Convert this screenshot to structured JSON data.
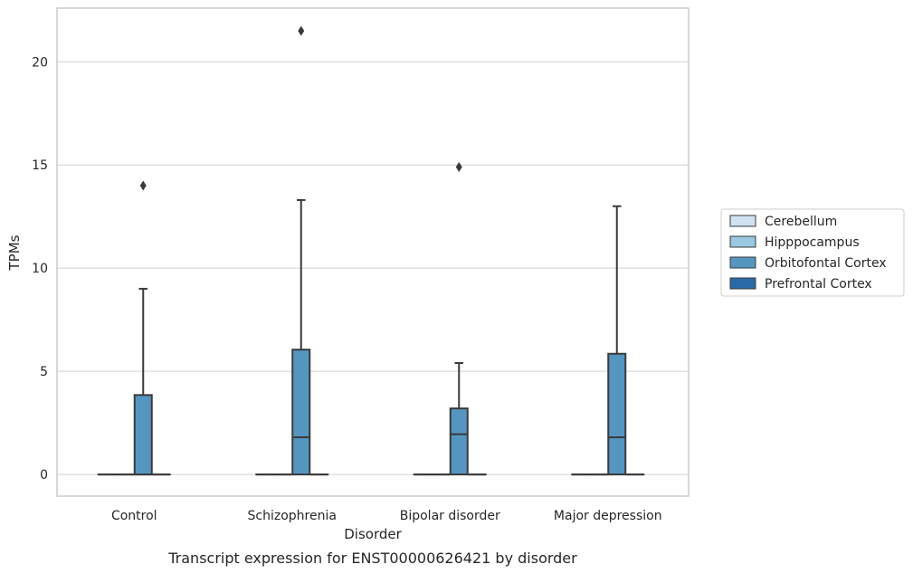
{
  "chart_data": {
    "type": "box",
    "caption": "Transcript expression for ENST00000626421 by disorder",
    "xlabel": "Disorder",
    "ylabel": "TPMs",
    "ylim": [
      -1.05,
      22.6
    ],
    "yticks": [
      0,
      5,
      10,
      15,
      20
    ],
    "grid": true,
    "legend_position": "right",
    "categories": [
      "Control",
      "Schizophrenia",
      "Bipolar disorder",
      "Major depression"
    ],
    "series": [
      {
        "name": "Cerebellum",
        "color": "#d0e1f2",
        "boxes": [
          {
            "q1": 0,
            "median": 0,
            "q3": 0,
            "whisker_low": 0,
            "whisker_high": 0,
            "outliers": []
          },
          {
            "q1": 0,
            "median": 0,
            "q3": 0,
            "whisker_low": 0,
            "whisker_high": 0,
            "outliers": []
          },
          {
            "q1": 0,
            "median": 0,
            "q3": 0,
            "whisker_low": 0,
            "whisker_high": 0,
            "outliers": []
          },
          {
            "q1": 0,
            "median": 0,
            "q3": 0,
            "whisker_low": 0,
            "whisker_high": 0,
            "outliers": []
          }
        ]
      },
      {
        "name": "Hipppocampus",
        "color": "#9ac8e0",
        "boxes": [
          {
            "q1": 0,
            "median": 0,
            "q3": 0,
            "whisker_low": 0,
            "whisker_high": 0,
            "outliers": []
          },
          {
            "q1": 0,
            "median": 0,
            "q3": 0,
            "whisker_low": 0,
            "whisker_high": 0,
            "outliers": []
          },
          {
            "q1": 0,
            "median": 0,
            "q3": 0,
            "whisker_low": 0,
            "whisker_high": 0,
            "outliers": []
          },
          {
            "q1": 0,
            "median": 0,
            "q3": 0,
            "whisker_low": 0,
            "whisker_high": 0,
            "outliers": []
          }
        ]
      },
      {
        "name": "Orbitofontal Cortex",
        "color": "#5596c1",
        "boxes": [
          {
            "q1": 0,
            "median": 0,
            "q3": 3.85,
            "whisker_low": 0,
            "whisker_high": 9.0,
            "outliers": [
              14.0
            ]
          },
          {
            "q1": 0,
            "median": 1.8,
            "q3": 6.05,
            "whisker_low": 0,
            "whisker_high": 13.3,
            "outliers": [
              21.5
            ]
          },
          {
            "q1": 0,
            "median": 1.95,
            "q3": 3.2,
            "whisker_low": 0,
            "whisker_high": 5.4,
            "outliers": [
              14.9
            ]
          },
          {
            "q1": 0,
            "median": 1.8,
            "q3": 5.85,
            "whisker_low": 0,
            "whisker_high": 13.0,
            "outliers": []
          }
        ]
      },
      {
        "name": "Prefrontal Cortex",
        "color": "#2a69a8",
        "boxes": [
          {
            "q1": 0,
            "median": 0,
            "q3": 0,
            "whisker_low": 0,
            "whisker_high": 0,
            "outliers": []
          },
          {
            "q1": 0,
            "median": 0,
            "q3": 0,
            "whisker_low": 0,
            "whisker_high": 0,
            "outliers": []
          },
          {
            "q1": 0,
            "median": 0,
            "q3": 0,
            "whisker_low": 0,
            "whisker_high": 0,
            "outliers": []
          },
          {
            "q1": 0,
            "median": 0,
            "q3": 0,
            "whisker_low": 0,
            "whisker_high": 0,
            "outliers": []
          }
        ]
      }
    ],
    "colors": {
      "grid": "#d0d0d0",
      "spine": "#cccccc",
      "box_edge": "#3a3a3a",
      "legend_border": "#cccccc"
    }
  }
}
